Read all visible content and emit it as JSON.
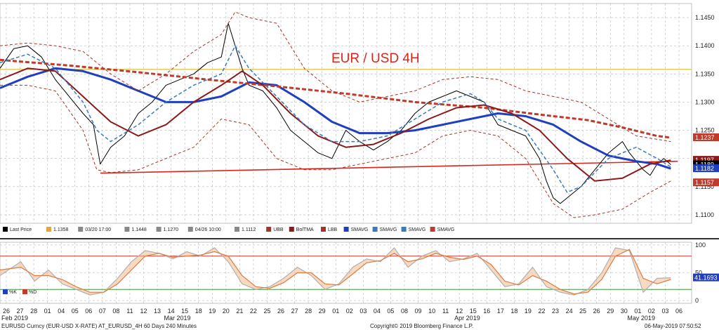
{
  "chart_data": {
    "type": "line",
    "title": "EUR / USD 4H",
    "price_panel": {
      "ylim": [
        1.1085,
        1.1475
      ],
      "y_ticks": [
        "1.1450",
        "1.1400",
        "1.1350",
        "1.1300",
        "1.1250",
        "1.1200",
        "1.1150",
        "1.1100"
      ],
      "price_tags": [
        {
          "value": 1.1237,
          "label": "1.1237",
          "color": "#c0392b"
        },
        {
          "value": 1.1197,
          "label": "1.1197",
          "color": "#8b1a1a"
        },
        {
          "value": 1.1189,
          "label": "1.1189",
          "color": "#000000"
        },
        {
          "value": 1.1182,
          "label": "1.1182",
          "color": "#1f3fbf"
        },
        {
          "value": 1.1157,
          "label": "1.1157",
          "color": "#c0392b"
        }
      ],
      "horizontal_level": 1.1358,
      "support_trendline": {
        "from": [
          0.145,
          1.1174
        ],
        "to": [
          0.98,
          1.1195
        ]
      },
      "series": [
        {
          "name": "Last Price",
          "color": "#000000",
          "x": [
            0,
            0.02,
            0.04,
            0.06,
            0.08,
            0.1,
            0.12,
            0.135,
            0.145,
            0.16,
            0.18,
            0.2,
            0.22,
            0.24,
            0.26,
            0.28,
            0.3,
            0.32,
            0.33,
            0.34,
            0.35,
            0.36,
            0.38,
            0.4,
            0.42,
            0.44,
            0.46,
            0.48,
            0.5,
            0.52,
            0.54,
            0.56,
            0.58,
            0.6,
            0.62,
            0.64,
            0.66,
            0.68,
            0.7,
            0.72,
            0.74,
            0.76,
            0.78,
            0.79,
            0.8,
            0.81,
            0.82,
            0.84,
            0.86,
            0.88,
            0.89,
            0.9,
            0.91,
            0.92,
            0.93,
            0.94,
            0.95,
            0.96,
            0.97
          ],
          "values": [
            1.136,
            1.1395,
            1.14,
            1.138,
            1.134,
            1.131,
            1.128,
            1.126,
            1.119,
            1.122,
            1.124,
            1.128,
            1.13,
            1.133,
            1.134,
            1.135,
            1.137,
            1.138,
            1.144,
            1.14,
            1.136,
            1.133,
            1.132,
            1.129,
            1.125,
            1.123,
            1.121,
            1.12,
            1.125,
            1.123,
            1.1215,
            1.123,
            1.125,
            1.128,
            1.13,
            1.131,
            1.132,
            1.131,
            1.13,
            1.126,
            1.125,
            1.124,
            1.12,
            1.116,
            1.113,
            1.112,
            1.113,
            1.115,
            1.118,
            1.121,
            1.122,
            1.123,
            1.121,
            1.1195,
            1.118,
            1.117,
            1.119,
            1.12,
            1.1189
          ]
        },
        {
          "name": "SMAVG",
          "color": "#1f3fbf",
          "dash": "",
          "width": 3,
          "x": [
            0,
            0.04,
            0.08,
            0.12,
            0.16,
            0.2,
            0.24,
            0.28,
            0.32,
            0.36,
            0.4,
            0.44,
            0.48,
            0.52,
            0.56,
            0.6,
            0.64,
            0.68,
            0.72,
            0.76,
            0.8,
            0.84,
            0.88,
            0.92,
            0.95,
            0.97
          ],
          "values": [
            1.1325,
            1.1345,
            1.136,
            1.1355,
            1.134,
            1.132,
            1.13,
            1.13,
            1.131,
            1.1335,
            1.133,
            1.13,
            1.1265,
            1.1245,
            1.1245,
            1.125,
            1.126,
            1.127,
            1.128,
            1.1275,
            1.126,
            1.123,
            1.1205,
            1.1195,
            1.119,
            1.1182
          ]
        },
        {
          "name": "SMAVG",
          "color": "#c0392b",
          "dash": "6,3",
          "width": 3,
          "x": [
            0,
            0.1,
            0.2,
            0.3,
            0.4,
            0.5,
            0.6,
            0.7,
            0.8,
            0.85,
            0.9,
            0.95,
            0.97
          ],
          "values": [
            1.1375,
            1.1365,
            1.1353,
            1.134,
            1.1328,
            1.1315,
            1.13,
            1.129,
            1.1275,
            1.1268,
            1.1255,
            1.124,
            1.1237
          ]
        },
        {
          "name": "BolTMA",
          "color": "#8b1a1a",
          "dash": "",
          "width": 2,
          "x": [
            0,
            0.04,
            0.08,
            0.12,
            0.16,
            0.2,
            0.24,
            0.28,
            0.32,
            0.35,
            0.38,
            0.42,
            0.46,
            0.5,
            0.54,
            0.58,
            0.62,
            0.66,
            0.7,
            0.74,
            0.78,
            0.82,
            0.86,
            0.9,
            0.94,
            0.97
          ],
          "values": [
            1.134,
            1.136,
            1.1355,
            1.131,
            1.1265,
            1.124,
            1.126,
            1.13,
            1.133,
            1.1355,
            1.133,
            1.128,
            1.124,
            1.122,
            1.1225,
            1.1245,
            1.127,
            1.129,
            1.1295,
            1.128,
            1.125,
            1.12,
            1.116,
            1.1165,
            1.119,
            1.1197
          ]
        },
        {
          "name": "SMAVG",
          "color": "#3a7bbf",
          "dash": "5,3",
          "width": 1.5,
          "x": [
            0,
            0.04,
            0.08,
            0.12,
            0.14,
            0.16,
            0.2,
            0.24,
            0.28,
            0.32,
            0.34,
            0.36,
            0.4,
            0.44,
            0.48,
            0.52,
            0.56,
            0.6,
            0.64,
            0.68,
            0.7,
            0.72,
            0.76,
            0.8,
            0.82,
            0.84,
            0.88,
            0.92,
            0.95,
            0.97
          ],
          "values": [
            1.137,
            1.1385,
            1.136,
            1.13,
            1.125,
            1.123,
            1.126,
            1.13,
            1.133,
            1.135,
            1.14,
            1.136,
            1.131,
            1.126,
            1.123,
            1.123,
            1.124,
            1.127,
            1.13,
            1.1315,
            1.13,
            1.127,
            1.125,
            1.118,
            1.114,
            1.115,
            1.12,
            1.122,
            1.12,
            1.1185
          ]
        },
        {
          "name": "UBB",
          "color": "#a93226",
          "dash": "4,3",
          "width": 1,
          "x": [
            0,
            0.04,
            0.08,
            0.12,
            0.16,
            0.2,
            0.24,
            0.28,
            0.32,
            0.34,
            0.36,
            0.4,
            0.44,
            0.48,
            0.52,
            0.56,
            0.6,
            0.64,
            0.68,
            0.72,
            0.76,
            0.8,
            0.84,
            0.88,
            0.92,
            0.97
          ],
          "values": [
            1.14,
            1.1405,
            1.14,
            1.139,
            1.135,
            1.132,
            1.135,
            1.139,
            1.142,
            1.146,
            1.145,
            1.144,
            1.136,
            1.132,
            1.13,
            1.131,
            1.132,
            1.134,
            1.1345,
            1.134,
            1.132,
            1.131,
            1.13,
            1.127,
            1.124,
            1.123
          ]
        },
        {
          "name": "LBB",
          "color": "#a93226",
          "dash": "4,3",
          "width": 1,
          "x": [
            0,
            0.04,
            0.08,
            0.12,
            0.14,
            0.16,
            0.2,
            0.24,
            0.28,
            0.32,
            0.36,
            0.4,
            0.44,
            0.48,
            0.52,
            0.56,
            0.6,
            0.64,
            0.68,
            0.72,
            0.76,
            0.8,
            0.83,
            0.86,
            0.9,
            0.94,
            0.97
          ],
          "values": [
            1.133,
            1.133,
            1.132,
            1.125,
            1.118,
            1.1175,
            1.118,
            1.12,
            1.122,
            1.127,
            1.126,
            1.12,
            1.118,
            1.118,
            1.119,
            1.12,
            1.121,
            1.124,
            1.125,
            1.124,
            1.12,
            1.112,
            1.1095,
            1.11,
            1.111,
            1.114,
            1.116
          ]
        }
      ]
    },
    "oscillator_panel": {
      "ylim": [
        -5,
        105
      ],
      "y_ticks": [
        "100",
        "50",
        "0"
      ],
      "levels": [
        80,
        20
      ],
      "value_tag": "41.1693",
      "series": [
        {
          "name": "%K",
          "color": "#b0b0b0",
          "x": [
            0,
            0.03,
            0.05,
            0.07,
            0.09,
            0.11,
            0.13,
            0.15,
            0.17,
            0.19,
            0.21,
            0.23,
            0.25,
            0.27,
            0.29,
            0.31,
            0.33,
            0.35,
            0.37,
            0.39,
            0.41,
            0.43,
            0.45,
            0.47,
            0.49,
            0.51,
            0.53,
            0.55,
            0.57,
            0.59,
            0.61,
            0.63,
            0.65,
            0.67,
            0.69,
            0.71,
            0.73,
            0.75,
            0.77,
            0.79,
            0.81,
            0.83,
            0.85,
            0.87,
            0.89,
            0.91,
            0.93,
            0.95,
            0.97
          ],
          "values": [
            45,
            70,
            35,
            55,
            30,
            20,
            10,
            15,
            40,
            70,
            90,
            85,
            75,
            88,
            80,
            95,
            70,
            30,
            20,
            25,
            40,
            60,
            45,
            20,
            30,
            60,
            75,
            70,
            95,
            60,
            80,
            90,
            70,
            75,
            85,
            55,
            25,
            30,
            60,
            25,
            15,
            10,
            20,
            50,
            95,
            90,
            15,
            40,
            41
          ]
        },
        {
          "name": "%D",
          "color": "#e07a3f",
          "x": [
            0,
            0.03,
            0.05,
            0.07,
            0.09,
            0.11,
            0.13,
            0.15,
            0.17,
            0.19,
            0.21,
            0.23,
            0.25,
            0.27,
            0.29,
            0.31,
            0.33,
            0.35,
            0.37,
            0.39,
            0.41,
            0.43,
            0.45,
            0.47,
            0.49,
            0.51,
            0.53,
            0.55,
            0.57,
            0.59,
            0.61,
            0.63,
            0.65,
            0.67,
            0.69,
            0.71,
            0.73,
            0.75,
            0.77,
            0.79,
            0.81,
            0.83,
            0.85,
            0.87,
            0.89,
            0.91,
            0.93,
            0.95,
            0.97
          ],
          "values": [
            55,
            60,
            45,
            45,
            38,
            25,
            15,
            15,
            30,
            55,
            80,
            85,
            78,
            80,
            82,
            88,
            80,
            45,
            25,
            22,
            32,
            50,
            50,
            30,
            28,
            48,
            68,
            72,
            85,
            70,
            75,
            85,
            78,
            74,
            80,
            65,
            35,
            28,
            45,
            35,
            20,
            12,
            15,
            38,
            80,
            92,
            40,
            30,
            38
          ]
        }
      ]
    },
    "x_ticks": [
      "26",
      "27",
      "28",
      "01",
      "04",
      "05",
      "06",
      "07",
      "08",
      "11",
      "12",
      "13",
      "14",
      "15",
      "18",
      "19",
      "20",
      "21",
      "22",
      "25",
      "26",
      "27",
      "28",
      "29",
      "01",
      "02",
      "03",
      "04",
      "05",
      "08",
      "09",
      "10",
      "11",
      "12",
      "15",
      "16",
      "17",
      "18",
      "19",
      "22",
      "23",
      "24",
      "25",
      "26",
      "29",
      "30",
      "01",
      "02",
      "03",
      "06"
    ],
    "x_groups": [
      "Feb 2019",
      "Mar 2019",
      "Apr 2019",
      "May 2019"
    ],
    "legend": [
      {
        "label": "Last Price",
        "color": "#000000"
      },
      {
        "label": "1.1358",
        "color": "#e8a33d"
      },
      {
        "label": "03/20 17:00",
        "color": "#888888"
      },
      {
        "label": "1.1448",
        "color": "#888888"
      },
      {
        "label": "1.1270",
        "color": "#888888"
      },
      {
        "label": "04/26 10:00",
        "color": "#888888"
      },
      {
        "label": "1.1112",
        "color": "#888888"
      },
      {
        "label": "UBB",
        "color": "#a93226"
      },
      {
        "label": "BolTMA",
        "color": "#8b1a1a"
      },
      {
        "label": "LBB",
        "color": "#a93226"
      },
      {
        "label": "SMAVG",
        "color": "#1f3fbf"
      },
      {
        "label": "SMAVG",
        "color": "#3a7bbf"
      },
      {
        "label": "SMAVG",
        "color": "#3a7bbf"
      },
      {
        "label": "SMAVG",
        "color": "#c0392b"
      }
    ],
    "osc_legend": [
      {
        "label": "%K",
        "color": "#1f3fbf"
      },
      {
        "label": "%D",
        "color": "#c0392b"
      }
    ]
  },
  "footer": {
    "left": "EURUSD Curncy (EUR-USD X-RATE) AT_EURUSD_4H 60 Days 240 Minutes",
    "center": "Copyright© 2019 Bloomberg Finance L.P.",
    "right": "06-May-2019 07:50:52"
  }
}
